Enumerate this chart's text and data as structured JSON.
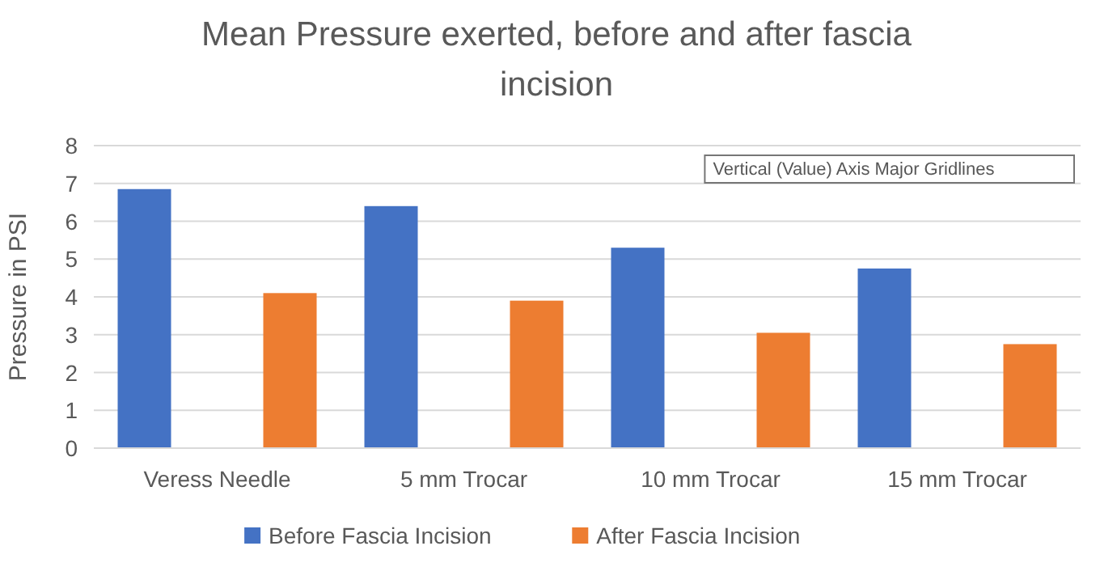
{
  "chart_data": {
    "type": "bar",
    "title": "Mean Pressure exerted, before and after fascia incision",
    "ylabel": "Pressure  in PSI",
    "categories": [
      "Veress Needle",
      "5 mm Trocar",
      "10 mm Trocar",
      "15 mm Trocar"
    ],
    "series": [
      {
        "name": "Before Fascia Incision",
        "color": "#4472c4",
        "values": [
          6.85,
          6.4,
          5.3,
          4.75
        ]
      },
      {
        "name": "After Fascia Incision",
        "color": "#ed7d31",
        "values": [
          4.1,
          3.9,
          3.05,
          2.75
        ]
      }
    ],
    "ylim": [
      0,
      8
    ],
    "yticks": [
      0,
      1,
      2,
      3,
      4,
      5,
      6,
      7,
      8
    ],
    "grid": "y",
    "legend": "bottom",
    "annotations": [
      "Vertical (Value) Axis Major Gridlines"
    ]
  }
}
